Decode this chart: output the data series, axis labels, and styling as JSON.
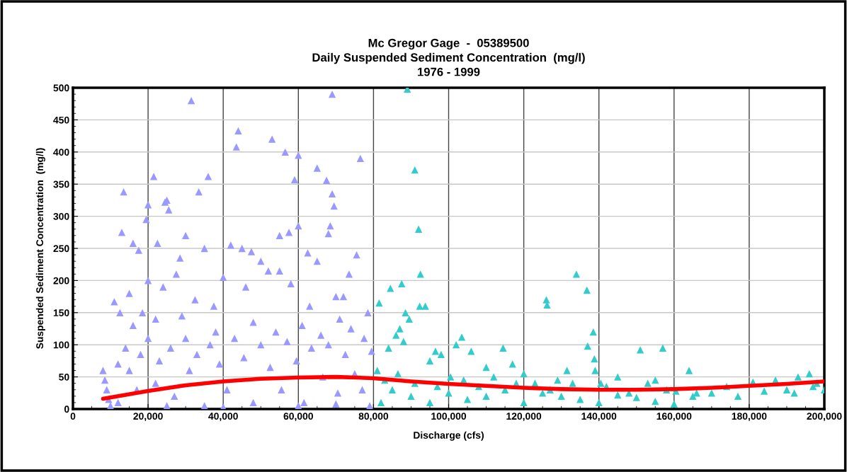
{
  "chart_data": {
    "type": "scatter",
    "title": "Mc Gregor Gage  -  05389500\nDaily Suspended Sediment Concentration  (mg/l)\n1976 - 1999",
    "xlabel": "Discharge (cfs)",
    "ylabel": "Suspended Sediment Concentration  (mg/l)",
    "xlim": [
      0,
      200000
    ],
    "ylim": [
      0,
      500
    ],
    "xticks": [
      {
        "value": 0,
        "label": "0"
      },
      {
        "value": 20000,
        "label": "20,000"
      },
      {
        "value": 40000,
        "label": "40,000"
      },
      {
        "value": 60000,
        "label": "60,000"
      },
      {
        "value": 80000,
        "label": "80,000"
      },
      {
        "value": 100000,
        "label": "100,000"
      },
      {
        "value": 120000,
        "label": "120,000"
      },
      {
        "value": 140000,
        "label": "140,000"
      },
      {
        "value": 160000,
        "label": "160,000"
      },
      {
        "value": 180000,
        "label": "180,000"
      },
      {
        "value": 200000,
        "label": "200,000"
      }
    ],
    "yticks": [
      0,
      50,
      100,
      150,
      200,
      250,
      300,
      350,
      400,
      450,
      500
    ],
    "grid": true,
    "marker": "triangle",
    "series": [
      {
        "color": "#9999ff",
        "x": [
          31500,
          69000,
          13500,
          20000,
          21500,
          33500,
          36000,
          44000,
          43500,
          53000,
          56500,
          60000,
          59000,
          65000,
          67500,
          69000,
          69500,
          68500,
          68000,
          76500,
          60000,
          57500,
          55000,
          25000,
          24500,
          25500,
          19500,
          22500,
          13000,
          16000,
          20000,
          17500,
          40000,
          42000,
          45000,
          52000,
          50000,
          47500,
          55000,
          62500,
          65000,
          73500,
          75500,
          72000,
          35000,
          30000,
          28500,
          27500,
          11000,
          12500,
          18500,
          15000,
          24000,
          32500,
          37500,
          46000,
          58000,
          63000,
          70000,
          78500,
          77500,
          16000,
          22000,
          29000,
          38000,
          48000,
          54000,
          61000,
          66000,
          71000,
          74000,
          8000,
          8500,
          9000,
          9500,
          10000,
          12000,
          14000,
          15000,
          17000,
          18000,
          20000,
          22000,
          23000,
          26000,
          27000,
          30000,
          31000,
          33000,
          35000,
          36500,
          39000,
          41000,
          43000,
          45500,
          48000,
          50000,
          52500,
          55500,
          57000,
          59500,
          61500,
          63500,
          66500,
          68000,
          70500,
          72500,
          75000,
          77000,
          79500,
          79000,
          12000,
          25000,
          40000,
          60000,
          70000
        ],
        "values": [
          480,
          490,
          338,
          318,
          362,
          338,
          362,
          433,
          408,
          420,
          400,
          395,
          357,
          375,
          356,
          335,
          316,
          285,
          273,
          390,
          285,
          275,
          270,
          325,
          322,
          310,
          295,
          258,
          275,
          258,
          200,
          247,
          205,
          255,
          250,
          215,
          230,
          245,
          215,
          243,
          230,
          210,
          240,
          175,
          250,
          270,
          235,
          210,
          167,
          150,
          150,
          180,
          190,
          170,
          160,
          190,
          195,
          160,
          175,
          150,
          110,
          130,
          140,
          145,
          120,
          135,
          120,
          130,
          115,
          140,
          125,
          60,
          45,
          30,
          15,
          5,
          70,
          95,
          60,
          30,
          85,
          110,
          40,
          75,
          95,
          20,
          110,
          60,
          85,
          5,
          100,
          70,
          30,
          110,
          80,
          10,
          100,
          65,
          30,
          105,
          75,
          10,
          95,
          50,
          100,
          25,
          85,
          55,
          30,
          90,
          5,
          10,
          5,
          3,
          5,
          8
        ]
      },
      {
        "color": "#33cccc",
        "x": [
          89000,
          91000,
          92000,
          92500,
          92300,
          81500,
          84500,
          87500,
          88500,
          93800,
          86000,
          89500,
          87000,
          81000,
          84000,
          88000,
          96500,
          98000,
          95000,
          102000,
          103500,
          100500,
          106000,
          110000,
          114500,
          117000,
          120000,
          123000,
          126000,
          126200,
          129000,
          131500,
          134000,
          136800,
          138500,
          137000,
          138800,
          139000,
          140500,
          142000,
          145000,
          148000,
          151000,
          153000,
          155000,
          157000,
          158000,
          160500,
          164000,
          166000,
          170000,
          174000,
          177000,
          181000,
          184000,
          187000,
          190000,
          193000,
          196000,
          198000,
          200000,
          82000,
          85000,
          90000,
          95000,
          100000,
          105000,
          110000,
          115000,
          120000,
          125000,
          130000,
          135000,
          140000,
          145000,
          150000,
          155000,
          160000,
          165000,
          192000,
          197000,
          83000,
          86500,
          91000,
          97000,
          104000,
          108000,
          112000,
          118000,
          127000,
          133000
        ],
        "values": [
          498,
          372,
          280,
          210,
          160,
          165,
          188,
          195,
          150,
          160,
          115,
          140,
          125,
          60,
          95,
          105,
          90,
          85,
          75,
          100,
          112,
          50,
          90,
          65,
          95,
          70,
          55,
          40,
          170,
          162,
          45,
          60,
          210,
          185,
          120,
          98,
          78,
          60,
          40,
          35,
          50,
          25,
          92,
          40,
          45,
          95,
          30,
          28,
          60,
          25,
          25,
          35,
          20,
          42,
          28,
          45,
          30,
          50,
          55,
          40,
          30,
          10,
          30,
          20,
          10,
          25,
          15,
          20,
          30,
          10,
          25,
          20,
          15,
          10,
          22,
          18,
          12,
          8,
          20,
          25,
          35,
          45,
          55,
          40,
          35,
          45,
          35,
          50,
          40,
          30,
          40
        ]
      },
      {
        "type": "line",
        "color": "#ff0000",
        "marker": "none",
        "x": [
          8000,
          20000,
          30000,
          40000,
          50000,
          60000,
          70000,
          80000,
          90000,
          100000,
          110000,
          120000,
          130000,
          140000,
          150000,
          160000,
          170000,
          180000,
          190000,
          200000
        ],
        "values": [
          16,
          28,
          37,
          43,
          47,
          49,
          50,
          48,
          43,
          39,
          36,
          33,
          31,
          30,
          30,
          31,
          33,
          36,
          39,
          43
        ]
      }
    ]
  }
}
